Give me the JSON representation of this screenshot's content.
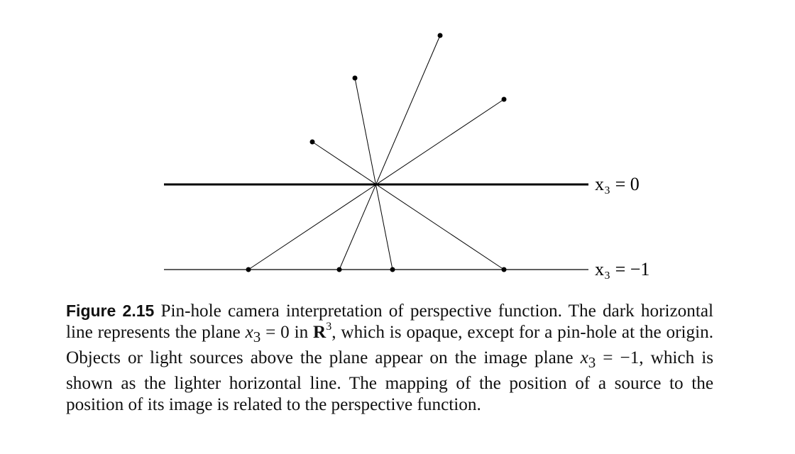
{
  "figure": {
    "plane_top_label": "x₃ = 0",
    "plane_bottom_label": "x₃ = −1",
    "plane_top_value": 0,
    "plane_bottom_value": -1
  },
  "caption": {
    "label": "Figure 2.15",
    "parts": [
      " Pin-hole camera interpretation of perspective function. The dark horizontal line represents the plane ",
      "x",
      "3",
      " = 0 in ",
      "R",
      "3",
      ", which is opaque, except for a pin-hole at the origin. Objects or light sources above the plane appear on the image plane ",
      "x",
      "3",
      " = −1, which is shown as the lighter horizontal line. The mapping of the position of a source to the position of its image is related to the perspective function."
    ]
  }
}
